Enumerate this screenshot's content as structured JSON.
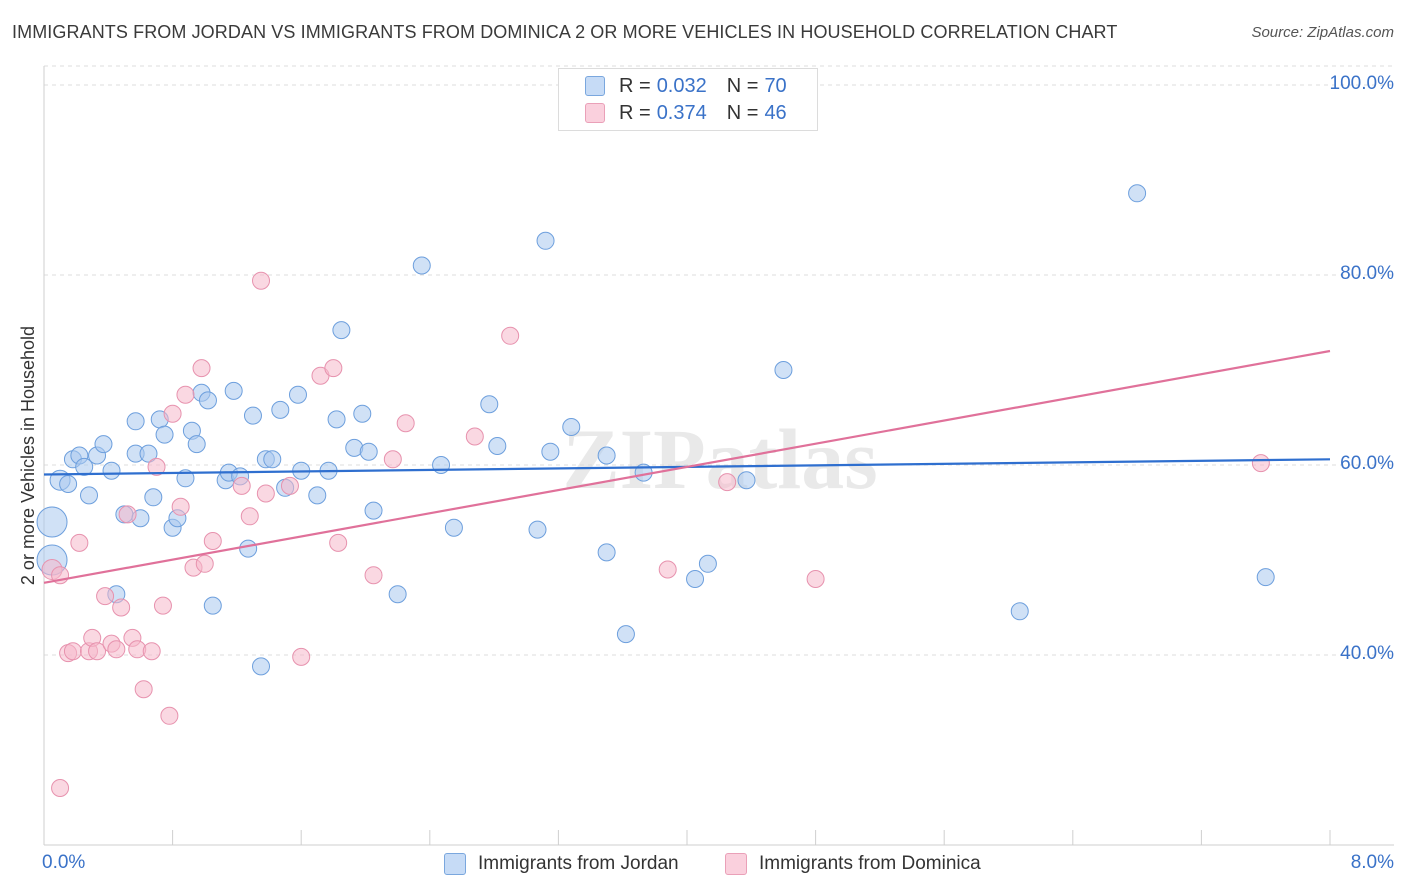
{
  "title": "IMMIGRANTS FROM JORDAN VS IMMIGRANTS FROM DOMINICA 2 OR MORE VEHICLES IN HOUSEHOLD CORRELATION CHART",
  "source": "Source: ZipAtlas.com",
  "watermark": "ZIPatlas",
  "legend": {
    "rows": [
      {
        "r_label": "R =",
        "r_value": "0.032",
        "n_label": "N =",
        "n_value": "70",
        "color": "#a9c8ef"
      },
      {
        "r_label": "R =",
        "r_value": "0.374",
        "n_label": "N =",
        "n_value": "46",
        "color": "#f6b8cb"
      }
    ]
  },
  "chart_data": {
    "type": "scatter",
    "title": "IMMIGRANTS FROM JORDAN VS IMMIGRANTS FROM DOMINICA 2 OR MORE VEHICLES IN HOUSEHOLD CORRELATION CHART",
    "xlabel": "",
    "ylabel": "2 or more Vehicles in Household",
    "xlim": [
      0,
      8
    ],
    "ylim": [
      20,
      102
    ],
    "x_ticks": [
      "0.0%",
      "8.0%"
    ],
    "y_ticks": [
      {
        "value": 40,
        "label": "40.0%"
      },
      {
        "value": 60,
        "label": "60.0%"
      },
      {
        "value": 80,
        "label": "80.0%"
      },
      {
        "value": 100,
        "label": "100.0%"
      }
    ],
    "grid": "horizontal dashed",
    "legend_position": "bottom",
    "series": [
      {
        "name": "Immigrants from Jordan",
        "color": "#a9c8ef",
        "stroke": "#6d9fdd",
        "trend": {
          "x": [
            0,
            8
          ],
          "y": [
            59.0,
            60.6
          ],
          "color": "#2f6fcf"
        },
        "points": [
          [
            0.05,
            54.0,
            3
          ],
          [
            0.05,
            50.0,
            3
          ],
          [
            0.1,
            58.4,
            2
          ],
          [
            0.15,
            58.0,
            1
          ],
          [
            0.18,
            60.6,
            1
          ],
          [
            0.22,
            61.0,
            1
          ],
          [
            0.25,
            59.8,
            1
          ],
          [
            0.28,
            56.8,
            1
          ],
          [
            0.33,
            61.0,
            1
          ],
          [
            0.37,
            62.2,
            1
          ],
          [
            0.42,
            59.4,
            1
          ],
          [
            0.45,
            46.4,
            1
          ],
          [
            0.5,
            54.8,
            1
          ],
          [
            0.57,
            61.2,
            1
          ],
          [
            0.57,
            64.6,
            1
          ],
          [
            0.6,
            54.4,
            1
          ],
          [
            0.65,
            61.2,
            1
          ],
          [
            0.68,
            56.6,
            1
          ],
          [
            0.72,
            64.8,
            1
          ],
          [
            0.75,
            63.2,
            1
          ],
          [
            0.8,
            53.4,
            1
          ],
          [
            0.83,
            54.4,
            1
          ],
          [
            0.88,
            58.6,
            1
          ],
          [
            0.92,
            63.6,
            1
          ],
          [
            0.95,
            62.2,
            1
          ],
          [
            0.98,
            67.6,
            1
          ],
          [
            1.02,
            66.8,
            1
          ],
          [
            1.05,
            45.2,
            1
          ],
          [
            1.13,
            58.4,
            1
          ],
          [
            1.15,
            59.2,
            1
          ],
          [
            1.18,
            67.8,
            1
          ],
          [
            1.22,
            58.8,
            1
          ],
          [
            1.27,
            51.2,
            1
          ],
          [
            1.3,
            65.2,
            1
          ],
          [
            1.35,
            38.8,
            1
          ],
          [
            1.38,
            60.6,
            1
          ],
          [
            1.42,
            60.6,
            1
          ],
          [
            1.47,
            65.8,
            1
          ],
          [
            1.5,
            57.6,
            1
          ],
          [
            1.58,
            67.4,
            1
          ],
          [
            1.6,
            59.4,
            1
          ],
          [
            1.7,
            56.8,
            1
          ],
          [
            1.77,
            59.4,
            1
          ],
          [
            1.82,
            64.8,
            1
          ],
          [
            1.85,
            74.2,
            1
          ],
          [
            1.93,
            61.8,
            1
          ],
          [
            1.98,
            65.4,
            1
          ],
          [
            2.02,
            61.4,
            1
          ],
          [
            2.05,
            55.2,
            1
          ],
          [
            2.2,
            46.4,
            1
          ],
          [
            2.35,
            81.0,
            1
          ],
          [
            2.47,
            60.0,
            1
          ],
          [
            2.55,
            53.4,
            1
          ],
          [
            2.77,
            66.4,
            1
          ],
          [
            2.82,
            62.0,
            1
          ],
          [
            3.07,
            53.2,
            1
          ],
          [
            3.12,
            83.6,
            1
          ],
          [
            3.15,
            61.4,
            1
          ],
          [
            3.28,
            64.0,
            1
          ],
          [
            3.5,
            61.0,
            1
          ],
          [
            3.5,
            50.8,
            1
          ],
          [
            3.62,
            42.2,
            1
          ],
          [
            3.73,
            59.2,
            1
          ],
          [
            4.05,
            48.0,
            1
          ],
          [
            4.13,
            49.6,
            1
          ],
          [
            4.37,
            58.4,
            1
          ],
          [
            4.6,
            70.0,
            1
          ],
          [
            6.07,
            44.6,
            1
          ],
          [
            6.8,
            88.6,
            1
          ],
          [
            7.6,
            48.2,
            1
          ]
        ]
      },
      {
        "name": "Immigrants from Dominica",
        "color": "#f6b8cb",
        "stroke": "#e792ae",
        "trend": {
          "x": [
            0,
            8
          ],
          "y": [
            47.6,
            72.0
          ],
          "color": "#e0719a"
        },
        "points": [
          [
            0.05,
            49.0,
            2
          ],
          [
            0.1,
            48.4,
            1
          ],
          [
            0.1,
            26.0,
            1
          ],
          [
            0.15,
            40.2,
            1
          ],
          [
            0.18,
            40.4,
            1
          ],
          [
            0.22,
            51.8,
            1
          ],
          [
            0.28,
            40.4,
            1
          ],
          [
            0.3,
            41.8,
            1
          ],
          [
            0.33,
            40.4,
            1
          ],
          [
            0.38,
            46.2,
            1
          ],
          [
            0.42,
            41.2,
            1
          ],
          [
            0.45,
            40.6,
            1
          ],
          [
            0.48,
            45.0,
            1
          ],
          [
            0.52,
            54.8,
            1
          ],
          [
            0.55,
            41.8,
            1
          ],
          [
            0.58,
            40.6,
            1
          ],
          [
            0.62,
            36.4,
            1
          ],
          [
            0.67,
            40.4,
            1
          ],
          [
            0.7,
            59.8,
            1
          ],
          [
            0.74,
            45.2,
            1
          ],
          [
            0.78,
            33.6,
            1
          ],
          [
            0.8,
            65.4,
            1
          ],
          [
            0.85,
            55.6,
            1
          ],
          [
            0.88,
            67.4,
            1
          ],
          [
            0.93,
            49.2,
            1
          ],
          [
            0.98,
            70.2,
            1
          ],
          [
            1.0,
            49.6,
            1
          ],
          [
            1.05,
            52.0,
            1
          ],
          [
            1.23,
            57.8,
            1
          ],
          [
            1.28,
            54.6,
            1
          ],
          [
            1.35,
            79.4,
            1
          ],
          [
            1.38,
            57.0,
            1
          ],
          [
            1.53,
            57.8,
            1
          ],
          [
            1.6,
            39.8,
            1
          ],
          [
            1.72,
            69.4,
            1
          ],
          [
            1.8,
            70.2,
            1
          ],
          [
            1.83,
            51.8,
            1
          ],
          [
            2.05,
            48.4,
            1
          ],
          [
            2.17,
            60.6,
            1
          ],
          [
            2.25,
            64.4,
            1
          ],
          [
            2.68,
            63.0,
            1
          ],
          [
            2.9,
            73.6,
            1
          ],
          [
            3.88,
            49.0,
            1
          ],
          [
            4.25,
            58.2,
            1
          ],
          [
            4.8,
            48.0,
            1
          ],
          [
            7.57,
            60.2,
            1
          ]
        ]
      }
    ]
  }
}
